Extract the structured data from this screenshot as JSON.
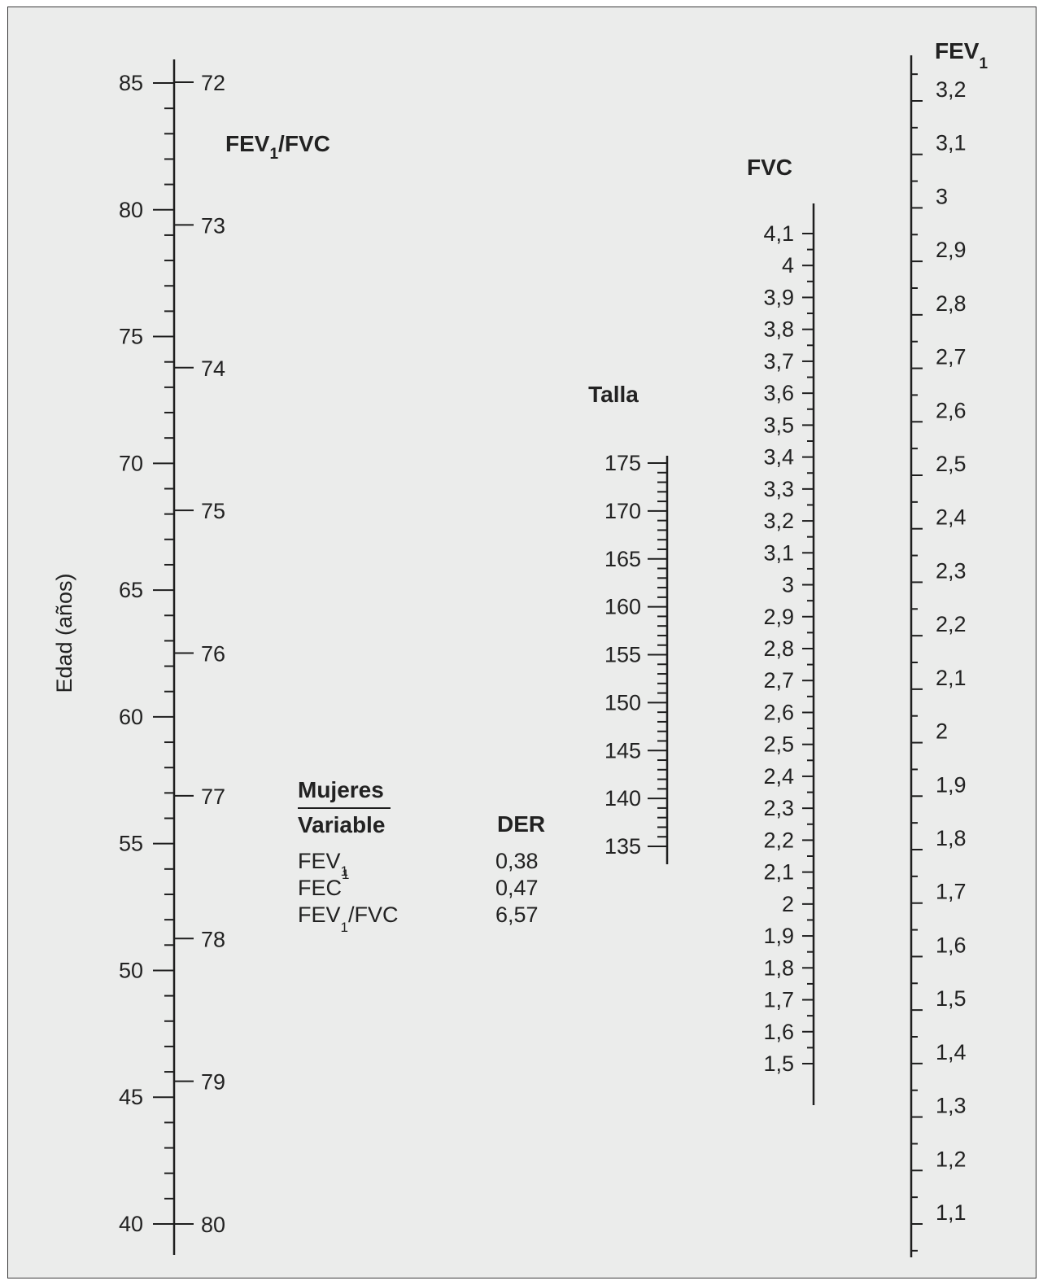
{
  "figure": {
    "language": "es",
    "colors": {
      "background": "#ebeceb",
      "ink": "#1e1e1e",
      "frame": "#3a3a3a"
    }
  },
  "scales": {
    "edad": {
      "label": "Edad (años)",
      "min": 40,
      "max": 85,
      "minor_step": 1,
      "labeled_ticks": [
        "40",
        "45",
        "50",
        "55",
        "60",
        "65",
        "70",
        "75",
        "80",
        "85"
      ]
    },
    "fev1_fvc": {
      "label_main": "FEV",
      "label_sub": "1",
      "label_tail": "/FVC",
      "labeled_ticks": [
        "72",
        "73",
        "74",
        "75",
        "76",
        "77",
        "78",
        "79",
        "80"
      ]
    },
    "talla": {
      "label": "Talla",
      "min": 135,
      "max": 175,
      "minor_step": 1,
      "labeled_ticks": [
        "135",
        "140",
        "145",
        "150",
        "155",
        "160",
        "165",
        "170",
        "175"
      ]
    },
    "fvc": {
      "label": "FVC",
      "min": 1.5,
      "max": 4.1,
      "minor_step": 0.05,
      "labeled_ticks": [
        "1,5",
        "1,6",
        "1,7",
        "1,8",
        "1,9",
        "2",
        "2,1",
        "2,2",
        "2,3",
        "2,4",
        "2,5",
        "2,6",
        "2,7",
        "2,8",
        "2,9",
        "3",
        "3,1",
        "3,2",
        "3,3",
        "3,4",
        "3,5",
        "3,6",
        "3,7",
        "3,8",
        "3,9",
        "4",
        "4,1"
      ]
    },
    "fev1": {
      "label_main": "FEV",
      "label_sub": "1",
      "min": 1.05,
      "max": 3.25,
      "minor_step": 0.05,
      "labeled_ticks": [
        "1,1",
        "1,2",
        "1,3",
        "1,4",
        "1,5",
        "1,6",
        "1,7",
        "1,8",
        "1,9",
        "2",
        "2,1",
        "2,2",
        "2,3",
        "2,4",
        "2,5",
        "2,6",
        "2,7",
        "2,8",
        "2,9",
        "3",
        "3,1",
        "3,2"
      ]
    }
  },
  "panel": {
    "group": "Mujeres",
    "col_variable": "Variable",
    "col_der": "DER",
    "rows": [
      {
        "name": "FEV",
        "sub": "1",
        "sup": "",
        "tail": "",
        "der": "0,38"
      },
      {
        "name": "FEC",
        "sub": "",
        "sup": "1",
        "tail": "",
        "der": "0,47"
      },
      {
        "name": "FEV",
        "sub": "1",
        "sup": "",
        "tail": "/FVC",
        "der": "6,57"
      }
    ]
  }
}
